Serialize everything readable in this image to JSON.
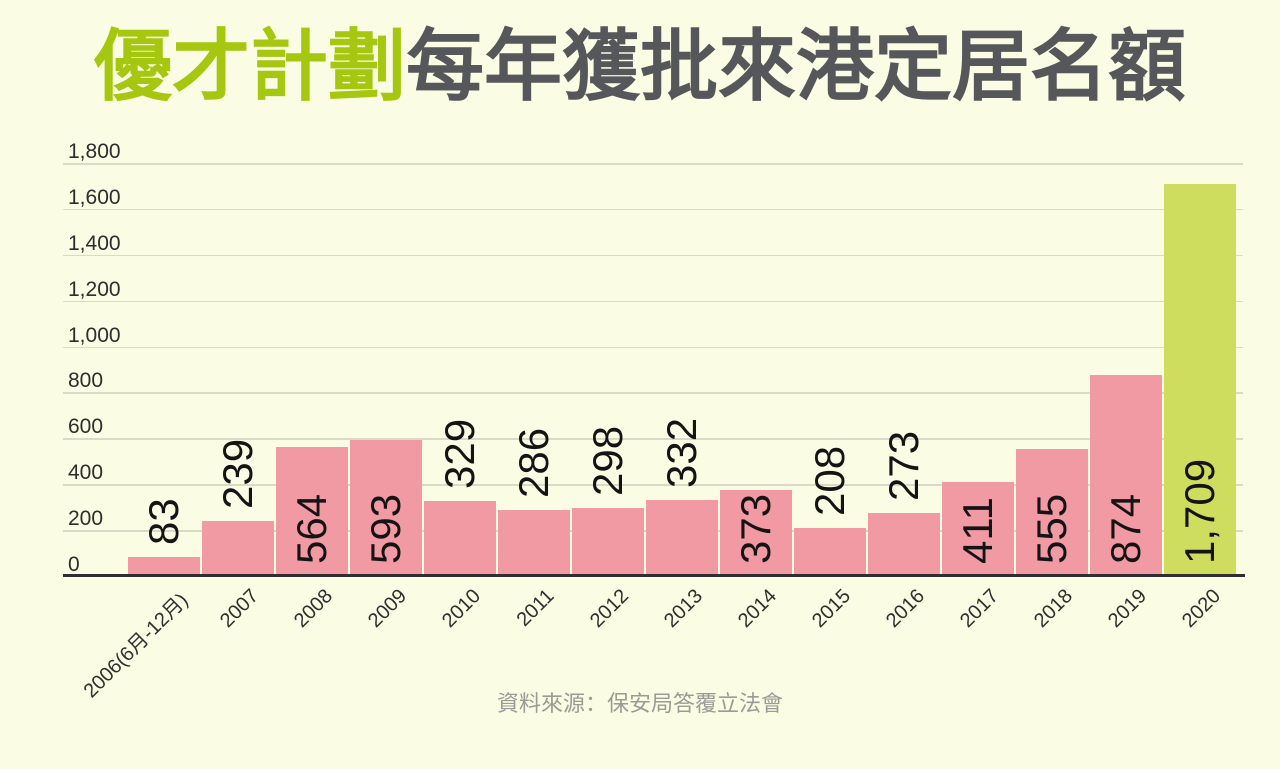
{
  "title": {
    "highlight": "優才計劃",
    "main": "每年獲批來港定居名額"
  },
  "source_note": "資料來源：保安局答覆立法會",
  "colors": {
    "background": "#fafce3",
    "bar": "#f29aa4",
    "bar_highlight": "#cfdd5f",
    "title_highlight": "#a5c70f",
    "title_main": "#56575a",
    "gridline": "#d9dac8",
    "axis_line": "#2f2f2f",
    "tick_label": "#2d2d2d",
    "value_label": "#141414",
    "x_label": "#2f2f2f",
    "source_text": "#9b9b95"
  },
  "chart_data": {
    "type": "bar",
    "title": "優才計劃每年獲批來港定居名額",
    "categories": [
      "2006(6月-12月)",
      "2007",
      "2008",
      "2009",
      "2010",
      "2011",
      "2012",
      "2013",
      "2014",
      "2015",
      "2016",
      "2017",
      "2018",
      "2019",
      "2020"
    ],
    "values": [
      83,
      239,
      564,
      593,
      329,
      286,
      298,
      332,
      373,
      208,
      273,
      411,
      555,
      874,
      1709
    ],
    "value_labels": [
      "83",
      "239",
      "564",
      "593",
      "329",
      "286",
      "298",
      "332",
      "373",
      "208",
      "273",
      "411",
      "555",
      "874",
      "1,709"
    ],
    "highlight_category": "2020",
    "highlight_index": 14,
    "xlabel": "",
    "ylabel": "",
    "ylim": [
      0,
      1800
    ],
    "yticks": [
      0,
      200,
      400,
      600,
      800,
      1000,
      1200,
      1400,
      1600,
      1800
    ],
    "ytick_labels": [
      "0",
      "200",
      "400",
      "600",
      "800",
      "1,000",
      "1,200",
      "1,400",
      "1,600",
      "1,800"
    ],
    "grid": true,
    "legend": "none"
  }
}
